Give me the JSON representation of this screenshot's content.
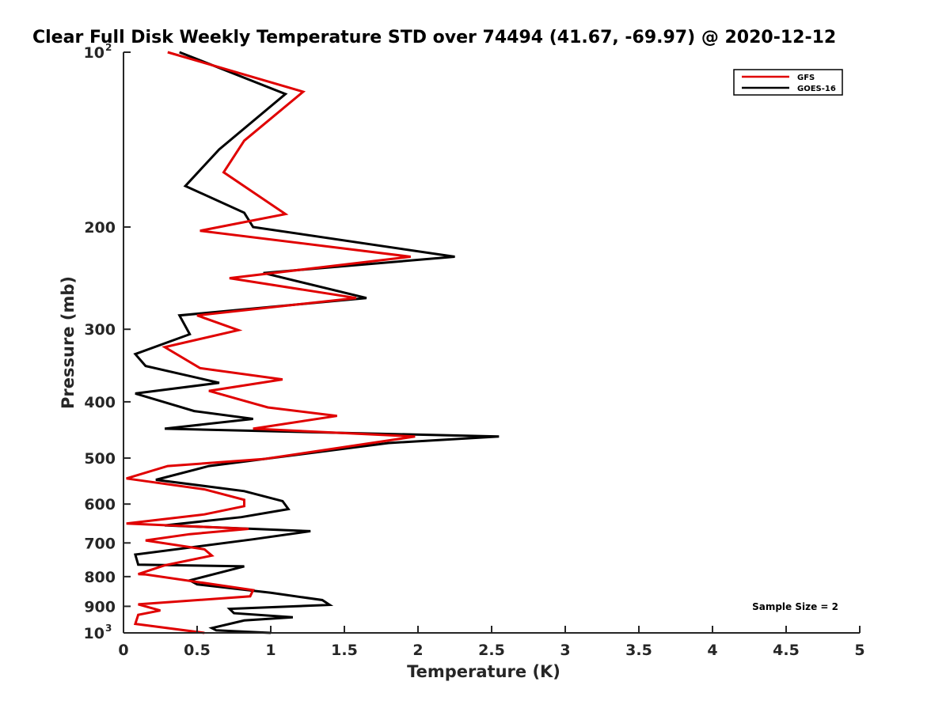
{
  "chart_data": {
    "type": "line",
    "title": "Clear Full Disk Weekly Temperature STD over 74494 (41.67, -69.97) @ 2020-12-12",
    "xlabel": "Temperature (K)",
    "ylabel": "Pressure (mb)",
    "xlim": [
      0,
      5
    ],
    "ylim": [
      100,
      1000
    ],
    "yscale": "log",
    "y_reversed": true,
    "x_ticks": [
      "0",
      "0.5",
      "1",
      "1.5",
      "2",
      "2.5",
      "3",
      "3.5",
      "4",
      "4.5",
      "5"
    ],
    "y_ticks": [
      {
        "value": 100,
        "label": "10",
        "sup": "2"
      },
      {
        "value": 200,
        "label": "200"
      },
      {
        "value": 300,
        "label": "300"
      },
      {
        "value": 400,
        "label": "400"
      },
      {
        "value": 500,
        "label": "500"
      },
      {
        "value": 600,
        "label": "600"
      },
      {
        "value": 700,
        "label": "700"
      },
      {
        "value": 800,
        "label": "800"
      },
      {
        "value": 900,
        "label": "900"
      },
      {
        "value": 1000,
        "label": "10",
        "sup": "3"
      }
    ],
    "legend_position": "top-right",
    "annotation": "Sample Size = 2",
    "series": [
      {
        "name": "GFS",
        "color": "#e00000",
        "points": [
          [
            0.3,
            100
          ],
          [
            1.22,
            117
          ],
          [
            0.82,
            142
          ],
          [
            0.68,
            161
          ],
          [
            1.1,
            190
          ],
          [
            0.52,
            203
          ],
          [
            1.95,
            225
          ],
          [
            0.72,
            245
          ],
          [
            1.58,
            265
          ],
          [
            0.5,
            284
          ],
          [
            0.78,
            301
          ],
          [
            0.28,
            322
          ],
          [
            0.52,
            350
          ],
          [
            1.08,
            366
          ],
          [
            0.58,
            383
          ],
          [
            0.98,
            409
          ],
          [
            1.45,
            423
          ],
          [
            0.88,
            445
          ],
          [
            1.98,
            459
          ],
          [
            0.95,
            502
          ],
          [
            0.3,
            516
          ],
          [
            0.02,
            542
          ],
          [
            0.55,
            566
          ],
          [
            0.82,
            590
          ],
          [
            0.82,
            605
          ],
          [
            0.55,
            625
          ],
          [
            0.02,
            648
          ],
          [
            0.85,
            662
          ],
          [
            0.45,
            676
          ],
          [
            0.15,
            693
          ],
          [
            0.55,
            718
          ],
          [
            0.6,
            736
          ],
          [
            0.28,
            765
          ],
          [
            0.1,
            792
          ],
          [
            0.15,
            793
          ],
          [
            0.88,
            844
          ],
          [
            0.86,
            865
          ],
          [
            0.1,
            893
          ],
          [
            0.25,
            915
          ],
          [
            0.1,
            931
          ],
          [
            0.08,
            965
          ],
          [
            0.55,
            1000
          ]
        ]
      },
      {
        "name": "GOES-16",
        "color": "#000000",
        "points": [
          [
            0.38,
            100
          ],
          [
            1.1,
            118
          ],
          [
            0.65,
            147
          ],
          [
            0.42,
            170
          ],
          [
            0.82,
            189
          ],
          [
            0.88,
            200
          ],
          [
            2.25,
            225
          ],
          [
            0.95,
            240
          ],
          [
            1.65,
            265
          ],
          [
            0.38,
            284
          ],
          [
            0.45,
            306
          ],
          [
            0.08,
            331
          ],
          [
            0.15,
            347
          ],
          [
            0.65,
            371
          ],
          [
            0.08,
            387
          ],
          [
            0.48,
            415
          ],
          [
            0.88,
            428
          ],
          [
            0.28,
            445
          ],
          [
            2.55,
            459
          ],
          [
            1.8,
            471
          ],
          [
            0.58,
            516
          ],
          [
            0.22,
            545
          ],
          [
            0.82,
            570
          ],
          [
            1.08,
            593
          ],
          [
            1.12,
            612
          ],
          [
            0.8,
            632
          ],
          [
            0.28,
            653
          ],
          [
            1.27,
            668
          ],
          [
            0.88,
            690
          ],
          [
            0.08,
            733
          ],
          [
            0.1,
            763
          ],
          [
            0.82,
            768
          ],
          [
            0.45,
            812
          ],
          [
            0.5,
            825
          ],
          [
            1.0,
            853
          ],
          [
            1.35,
            878
          ],
          [
            1.4,
            895
          ],
          [
            0.72,
            909
          ],
          [
            0.75,
            925
          ],
          [
            1.15,
            940
          ],
          [
            0.82,
            952
          ],
          [
            0.6,
            981
          ],
          [
            0.63,
            990
          ],
          [
            1.0,
            1000
          ]
        ]
      }
    ]
  }
}
